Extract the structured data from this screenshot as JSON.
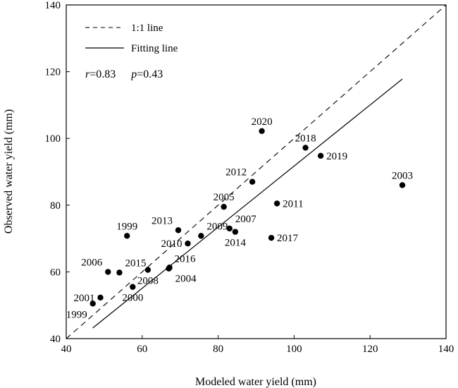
{
  "chart_data": {
    "type": "scatter",
    "xlabel": "Modeled water yield (mm)",
    "ylabel": "Observed water yield (mm)",
    "xlim": [
      40,
      140
    ],
    "ylim": [
      40,
      140
    ],
    "xticks": [
      "40",
      "60",
      "80",
      "100",
      "120",
      "140"
    ],
    "yticks": [
      "40",
      "60",
      "80",
      "100",
      "120",
      "140"
    ],
    "grid": false,
    "legend_placement": "top-left",
    "legend": [
      {
        "label": "1:1 line",
        "style": "dashed"
      },
      {
        "label": "Fitting line",
        "style": "solid"
      }
    ],
    "stats": {
      "r_symbol": "r",
      "r_value": "=0.83",
      "p_symbol": "p",
      "p_value": "=0.43"
    },
    "points": [
      {
        "label": "1999",
        "x": 47.0,
        "y": 50.5,
        "lx": -1,
        "ly": 1
      },
      {
        "label": "2001",
        "x": 49.0,
        "y": 52.3,
        "lx": -1,
        "ly": 0
      },
      {
        "label": "2000",
        "x": 57.5,
        "y": 55.5,
        "lx": 0,
        "ly": 1
      },
      {
        "label": "2006",
        "x": 51.0,
        "y": 60.0,
        "lx": -1,
        "ly": -1
      },
      {
        "label": "2015",
        "x": 54.0,
        "y": 59.8,
        "lx": 1,
        "ly": -1
      },
      {
        "label": "2008",
        "x": 61.5,
        "y": 60.6,
        "lx": 0,
        "ly": 1
      },
      {
        "label": "2016",
        "x": 67.0,
        "y": 61.0,
        "lx": 1,
        "ly": -1
      },
      {
        "label": "2004",
        "x": 67.2,
        "y": 61.3,
        "lx": 1,
        "ly": 1
      },
      {
        "label": "1999",
        "x": 56.0,
        "y": 70.8,
        "lx": 0,
        "ly": -1
      },
      {
        "label": "2010",
        "x": 72.0,
        "y": 68.5,
        "lx": -1,
        "ly": 0
      },
      {
        "label": "2013",
        "x": 69.5,
        "y": 72.5,
        "lx": -1,
        "ly": -1
      },
      {
        "label": "2009",
        "x": 75.5,
        "y": 70.8,
        "lx": 1,
        "ly": -1
      },
      {
        "label": "2007",
        "x": 83.0,
        "y": 73.0,
        "lx": 1,
        "ly": -1
      },
      {
        "label": "2014",
        "x": 84.5,
        "y": 72.0,
        "lx": 0,
        "ly": 1
      },
      {
        "label": "2017",
        "x": 94.0,
        "y": 70.2,
        "lx": 1,
        "ly": 0
      },
      {
        "label": "2005",
        "x": 81.5,
        "y": 79.5,
        "lx": 0,
        "ly": -1
      },
      {
        "label": "2011",
        "x": 95.5,
        "y": 80.5,
        "lx": 1,
        "ly": 0
      },
      {
        "label": "2012",
        "x": 89.0,
        "y": 87.0,
        "lx": -1,
        "ly": -1
      },
      {
        "label": "2020",
        "x": 91.5,
        "y": 102.2,
        "lx": 0,
        "ly": -1
      },
      {
        "label": "2018",
        "x": 103.0,
        "y": 97.2,
        "lx": 0,
        "ly": -1
      },
      {
        "label": "2019",
        "x": 107.0,
        "y": 94.8,
        "lx": 1,
        "ly": 0
      },
      {
        "label": "2003",
        "x": 128.5,
        "y": 86.0,
        "lx": 0,
        "ly": -1
      }
    ],
    "one_to_one_line": {
      "x": [
        40,
        140
      ],
      "y": [
        40,
        140
      ]
    },
    "fitting_line": {
      "x": [
        47,
        128.5
      ],
      "y": [
        43.2,
        117.8
      ]
    }
  }
}
